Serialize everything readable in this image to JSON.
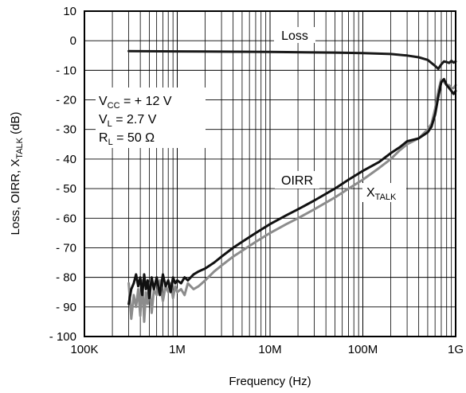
{
  "chart_data": {
    "type": "line",
    "xlabel": "Frequency (Hz)",
    "ylabel": {
      "main": "Loss, OIRR, X",
      "sub": "TALK",
      "unit": " (dB)"
    },
    "x_scale": "log",
    "xlim": [
      100000,
      1000000000
    ],
    "ylim": [
      -100,
      10
    ],
    "x_ticks": [
      {
        "v": 100000,
        "label": "100K"
      },
      {
        "v": 1000000,
        "label": "1M"
      },
      {
        "v": 10000000,
        "label": "10M"
      },
      {
        "v": 100000000,
        "label": "100M"
      },
      {
        "v": 1000000000,
        "label": "1G"
      }
    ],
    "y_ticks": [
      {
        "v": 10,
        "label": "10"
      },
      {
        "v": 0,
        "label": "0"
      },
      {
        "v": -10,
        "label": "- 10"
      },
      {
        "v": -20,
        "label": "- 20"
      },
      {
        "v": -30,
        "label": "- 30"
      },
      {
        "v": -40,
        "label": "- 40"
      },
      {
        "v": -50,
        "label": "- 50"
      },
      {
        "v": -60,
        "label": "- 60"
      },
      {
        "v": -70,
        "label": "- 70"
      },
      {
        "v": -80,
        "label": "- 80"
      },
      {
        "v": -90,
        "label": "- 90"
      },
      {
        "v": -100,
        "label": "- 100"
      }
    ],
    "grid": true,
    "conditions": [
      {
        "main": "V",
        "sub": "CC",
        "rest": " = + 12 V"
      },
      {
        "main": "V",
        "sub": "L",
        "rest": " = 2.7 V"
      },
      {
        "main": "R",
        "sub": "L",
        "rest": " = 50 Ω"
      }
    ],
    "series": [
      {
        "name": "Loss",
        "color": "#1a1a1a",
        "x": [
          300000,
          1000000,
          10000000,
          50000000,
          100000000,
          200000000,
          300000000,
          400000000,
          500000000,
          600000000,
          650000000,
          700000000,
          750000000,
          800000000,
          850000000,
          900000000,
          950000000,
          1000000000
        ],
        "y": [
          -3.5,
          -3.6,
          -3.8,
          -4.0,
          -4.2,
          -4.5,
          -5.0,
          -5.6,
          -6.5,
          -8.5,
          -9.5,
          -8.0,
          -7.0,
          -7.2,
          -7.5,
          -6.8,
          -7.4,
          -7.0
        ]
      },
      {
        "name": "OIRR",
        "color": "#111111",
        "x": [
          300000,
          320000,
          340000,
          360000,
          380000,
          400000,
          420000,
          440000,
          460000,
          480000,
          500000,
          530000,
          560000,
          600000,
          650000,
          700000,
          750000,
          800000,
          850000,
          900000,
          950000,
          1000000,
          1100000,
          1200000,
          1300000,
          1500000,
          1700000,
          2000000,
          2500000,
          3000000,
          4000000,
          5000000,
          7000000,
          10000000,
          15000000,
          20000000,
          30000000,
          50000000,
          70000000,
          100000000,
          150000000,
          200000000,
          250000000,
          300000000,
          400000000,
          500000000,
          550000000,
          600000000,
          650000000,
          700000000,
          750000000,
          800000000,
          850000000,
          900000000,
          950000000,
          1000000000
        ],
        "y": [
          -89,
          -84,
          -82,
          -79,
          -83,
          -80,
          -86,
          -79,
          -84,
          -81,
          -87,
          -80,
          -84,
          -80,
          -86,
          -79,
          -83,
          -81,
          -85,
          -80,
          -82,
          -81,
          -82,
          -80,
          -81,
          -79,
          -78,
          -77,
          -75,
          -73,
          -70,
          -68,
          -65,
          -62,
          -59,
          -57,
          -54,
          -50,
          -47,
          -44,
          -41,
          -38,
          -36,
          -34,
          -33,
          -31,
          -29,
          -25,
          -19,
          -14,
          -13,
          -15,
          -16,
          -17,
          -18,
          -17
        ]
      },
      {
        "name": "XTALK",
        "color": "#8c8c8c",
        "x": [
          300000,
          320000,
          340000,
          360000,
          380000,
          400000,
          420000,
          440000,
          460000,
          480000,
          500000,
          530000,
          560000,
          600000,
          650000,
          700000,
          750000,
          800000,
          850000,
          900000,
          950000,
          1000000,
          1100000,
          1200000,
          1300000,
          1500000,
          1700000,
          2000000,
          2500000,
          3000000,
          4000000,
          5000000,
          7000000,
          10000000,
          15000000,
          20000000,
          30000000,
          50000000,
          70000000,
          100000000,
          150000000,
          200000000,
          250000000,
          300000000,
          400000000,
          500000000,
          550000000,
          600000000,
          650000000,
          700000000,
          750000000,
          800000000,
          850000000,
          900000000,
          950000000,
          1000000000
        ],
        "y": [
          -82,
          -94,
          -86,
          -90,
          -84,
          -93,
          -81,
          -95,
          -85,
          -89,
          -82,
          -92,
          -84,
          -86,
          -81,
          -88,
          -83,
          -85,
          -82,
          -87,
          -83,
          -85,
          -84,
          -86,
          -82,
          -84,
          -83,
          -81,
          -78,
          -76,
          -73,
          -71,
          -68,
          -65,
          -62,
          -60,
          -57,
          -53,
          -50,
          -47,
          -43,
          -40,
          -37,
          -35,
          -33,
          -30,
          -28,
          -23,
          -17,
          -13,
          -14,
          -15,
          -15,
          -16,
          -16,
          -15
        ]
      }
    ],
    "annotations": [
      {
        "text": "Loss",
        "series": "Loss"
      },
      {
        "text": "OIRR",
        "series": "OIRR"
      },
      {
        "main": "X",
        "sub": "TALK",
        "series": "XTALK"
      }
    ]
  }
}
